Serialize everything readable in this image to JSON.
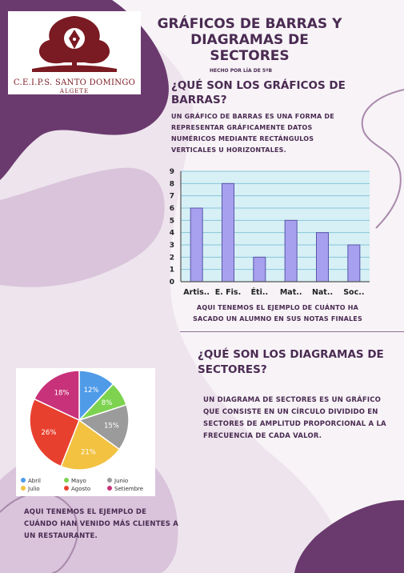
{
  "logo": {
    "name": "C.E.I.P.S. SANTO DOMINGO",
    "place": "ALGETE"
  },
  "header": {
    "title_lines": [
      "GRÁFICOS DE BARRAS Y",
      "DIAGRAMAS DE",
      "SECTORES"
    ],
    "author": "HECHO POR LÍA DE 5ºB"
  },
  "bars_section": {
    "heading_lines": [
      "¿QUÉ SON LOS GRÁFICOS DE",
      "BARRAS?"
    ],
    "description_lines": [
      "UN GRÁFICO DE BARRAS ES UNA FORMA DE",
      "REPRESENTAR GRÁFICAMENTE DATOS",
      "NUMÉRICOS MEDIANTE RECTÁNGULOS",
      "VERTICALES U HORIZONTALES."
    ],
    "caption_lines": [
      "AQUI TENEMOS EL EJEMPLO DE CUÁNTO HA",
      "SACADO UN ALUMNO EN SUS NOTAS FINALES"
    ]
  },
  "pie_section": {
    "heading_lines": [
      "¿QUÉ SON LOS DIAGRAMAS DE",
      "SECTORES?"
    ],
    "description_lines": [
      "UN DIAGRAMA DE SECTORES  ES UN GRÁFICO",
      "QUE CONSISTE  EN  UN CÍRCULO DIVIDIDO EN",
      "SECTORES DE AMPLITUD PROPORCIONAL A LA",
      "FRECUENCIA DE CADA VALOR."
    ],
    "caption_lines": [
      "AQUI TENEMOS EL EJEMPLO DE",
      "CUÁNDO HAN VENIDO MÁS CLIENTES A",
      "UN RESTAURANTE."
    ]
  },
  "chart_data": [
    {
      "type": "bar",
      "categories": [
        "Artis..",
        "E. Fis.",
        "Éti..",
        "Mat..",
        "Nat..",
        "Soc.."
      ],
      "values": [
        6,
        8,
        2,
        5,
        4,
        3
      ],
      "ylim": [
        0,
        9
      ],
      "yticks": [
        0,
        1,
        2,
        3,
        4,
        5,
        6,
        7,
        8,
        9
      ],
      "grid": true,
      "colors": {
        "bar": "#a6a0ee",
        "bar_stroke": "#5a55a8",
        "plot_bg": "#d6f0f6",
        "grid": "#86c5d8"
      }
    },
    {
      "type": "pie",
      "labels": [
        "Abril",
        "Mayo",
        "Junio",
        "Julio",
        "Agosto",
        "Setiembre"
      ],
      "values": [
        12,
        8,
        15,
        21,
        26,
        18
      ],
      "value_labels": [
        "12%",
        "8%",
        "15%",
        "21%",
        "26%",
        "18%"
      ],
      "colors": [
        "#4f9be8",
        "#7dd350",
        "#9b9b9b",
        "#f2c240",
        "#e8402e",
        "#c8327a"
      ],
      "legend": "bottom"
    }
  ],
  "theme": {
    "background": "#eee4ed",
    "blob_dark": "#6a3a6e",
    "blob_light": "#ffffff",
    "text": "#4a2b52",
    "logo_red": "#7a1a22"
  }
}
